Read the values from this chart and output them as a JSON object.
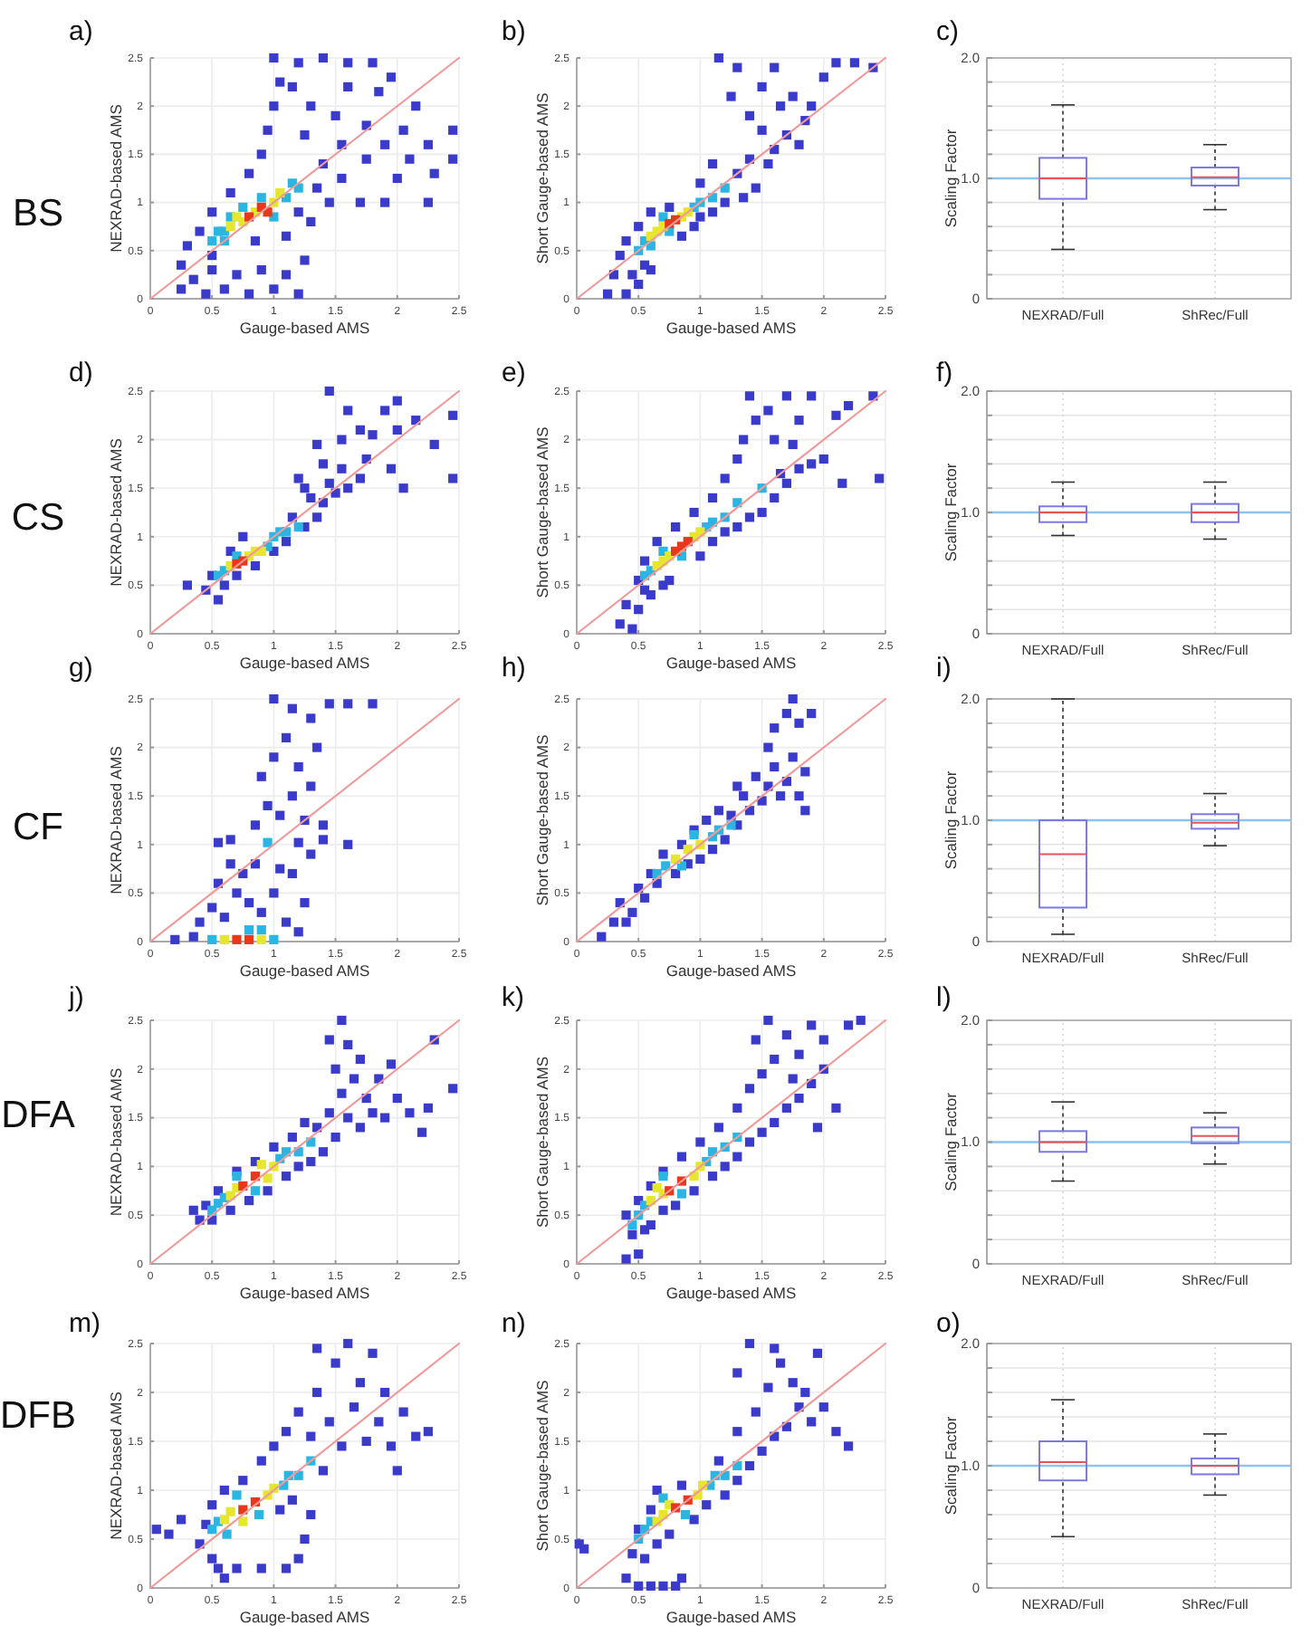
{
  "chart_data": [
    {
      "type": "scatter",
      "title": "a)",
      "annotations": [
        "BS"
      ],
      "xlabel": "Gauge-based AMS",
      "ylabel": "NEXRAD-based AMS",
      "xlim": [
        0,
        2.5
      ],
      "ylim": [
        0,
        2.5
      ],
      "xticks": [
        0,
        0.5,
        1,
        1.5,
        2,
        2.5
      ],
      "yticks": [
        0,
        0.5,
        1,
        1.5,
        2,
        2.5
      ],
      "grid": true,
      "marker": "square",
      "series": [
        {
          "color": "#3a3acb",
          "x": [
            0.25,
            0.25,
            0.3,
            0.35,
            0.45,
            0.5,
            0.6,
            0.7,
            0.8,
            0.9,
            1.0,
            1.1,
            1.2,
            1.25,
            1.1,
            0.4,
            0.5,
            0.85,
            1.3,
            1.2,
            1.45,
            1.7,
            1.9,
            2.25,
            0.5,
            0.65,
            0.8,
            0.9,
            0.95,
            1.0,
            1.05,
            1.0,
            1.2,
            1.4,
            1.6,
            1.8,
            1.15,
            1.3,
            1.25,
            1.4,
            1.35,
            1.55,
            1.55,
            1.5,
            1.6,
            1.75,
            1.85,
            1.95,
            1.75,
            1.9,
            2.05,
            2.15,
            2.1,
            2.25,
            2.45,
            2.45,
            2.0,
            2.3
          ],
          "values": [
            0.1,
            0.35,
            0.55,
            0.2,
            0.05,
            0.3,
            0.1,
            0.25,
            0.05,
            0.3,
            0.1,
            0.25,
            0.05,
            0.4,
            0.65,
            0.7,
            0.45,
            0.6,
            0.8,
            0.9,
            1.0,
            1.0,
            1.0,
            1.0,
            0.9,
            1.1,
            1.3,
            1.5,
            1.75,
            2.0,
            2.25,
            2.5,
            2.45,
            2.5,
            2.45,
            2.45,
            2.2,
            2.0,
            1.7,
            1.4,
            1.15,
            1.25,
            1.6,
            1.9,
            2.2,
            1.8,
            2.15,
            2.3,
            1.45,
            1.6,
            1.75,
            2.0,
            1.45,
            1.6,
            1.45,
            1.75,
            1.25,
            1.3
          ]
        },
        {
          "color": "#2bb5e3",
          "x": [
            0.5,
            0.55,
            0.6,
            0.65,
            0.75,
            1.0,
            1.1,
            1.15,
            1.2,
            0.9,
            0.6
          ],
          "values": [
            0.6,
            0.7,
            0.6,
            0.85,
            0.95,
            0.85,
            1.05,
            1.2,
            1.15,
            1.05,
            0.7
          ]
        },
        {
          "color": "#e6e62e",
          "x": [
            0.65,
            0.75,
            0.85,
            1.0,
            1.05,
            0.7
          ],
          "values": [
            0.75,
            0.8,
            0.9,
            1.0,
            1.1,
            0.85
          ]
        },
        {
          "color": "#e8381c",
          "x": [
            0.8,
            0.9,
            0.95
          ],
          "values": [
            0.85,
            0.95,
            0.9
          ]
        },
        {
          "type": "line",
          "marker": "none",
          "color": "#f19a9a",
          "x": [
            0,
            2.5
          ],
          "values": [
            0,
            2.5
          ]
        }
      ]
    },
    {
      "type": "scatter",
      "title": "b)",
      "xlabel": "Gauge-based AMS",
      "ylabel": "Short Gauge-based AMS",
      "xlim": [
        0,
        2.5
      ],
      "ylim": [
        0,
        2.5
      ],
      "xticks": [
        0,
        0.5,
        1,
        1.5,
        2,
        2.5
      ],
      "yticks": [
        0,
        0.5,
        1,
        1.5,
        2,
        2.5
      ],
      "grid": true,
      "marker": "square",
      "series": [
        {
          "color": "#3a3acb",
          "x": [
            0.25,
            0.3,
            0.35,
            0.4,
            0.45,
            0.5,
            0.55,
            0.6,
            0.4,
            0.5,
            0.6,
            0.75,
            0.85,
            0.95,
            1.0,
            1.1,
            1.2,
            1.35,
            1.45,
            1.3,
            1.4,
            1.55,
            1.6,
            1.7,
            1.8,
            1.85,
            1.5,
            1.4,
            1.25,
            1.15,
            1.3,
            1.5,
            1.6,
            1.75,
            1.9,
            2.0,
            2.1,
            2.25,
            2.4,
            1.65,
            1.1,
            1.0
          ],
          "values": [
            0.05,
            0.25,
            0.45,
            0.05,
            0.25,
            0.15,
            0.35,
            0.3,
            0.6,
            0.75,
            0.9,
            0.95,
            0.65,
            0.75,
            0.85,
            0.9,
            1.0,
            1.05,
            1.15,
            1.3,
            1.45,
            1.4,
            1.55,
            1.7,
            1.6,
            1.85,
            1.75,
            1.9,
            2.1,
            2.5,
            2.4,
            2.2,
            2.4,
            2.1,
            2.0,
            2.3,
            2.45,
            2.45,
            2.4,
            2.0,
            1.4,
            1.2
          ]
        },
        {
          "color": "#2bb5e3",
          "x": [
            0.5,
            0.55,
            0.6,
            0.75,
            0.95,
            1.0,
            1.1,
            0.7,
            1.2
          ],
          "values": [
            0.5,
            0.6,
            0.55,
            0.7,
            0.95,
            1.0,
            1.05,
            0.85,
            1.15
          ]
        },
        {
          "color": "#e6e62e",
          "x": [
            0.65,
            0.7,
            0.85,
            0.9,
            0.6
          ],
          "values": [
            0.7,
            0.75,
            0.85,
            0.9,
            0.65
          ]
        },
        {
          "color": "#e8381c",
          "x": [
            0.8,
            0.75
          ],
          "values": [
            0.82,
            0.78
          ]
        },
        {
          "type": "line",
          "marker": "none",
          "color": "#f19a9a",
          "x": [
            0,
            2.5
          ],
          "values": [
            0,
            2.5
          ]
        }
      ]
    },
    {
      "type": "box",
      "title": "c)",
      "ylabel": "Scaling Factor",
      "categories": [
        "NEXRAD/Full",
        "ShRec/Full"
      ],
      "ylim": [
        0,
        2
      ],
      "yticks": [
        0,
        {
          "value": 0.2,
          "label": null
        },
        {
          "value": 0.4,
          "label": null
        },
        {
          "value": 0.6,
          "label": null
        },
        {
          "value": 0.8,
          "label": null
        },
        {
          "value": 1,
          "label": "1.0"
        },
        {
          "value": 1.2,
          "label": null
        },
        {
          "value": 1.4,
          "label": null
        },
        {
          "value": 1.6,
          "label": null
        },
        {
          "value": 1.8,
          "label": null
        },
        {
          "value": 2,
          "label": "2.0"
        }
      ],
      "grid": true,
      "ref_lines": [
        {
          "axis": "y",
          "value": 1,
          "color": "#8fc3ec"
        }
      ],
      "series": [
        {
          "color": "#7d78e2",
          "boxes": [
            {
              "low": 0.41,
              "q1": 0.83,
              "median": 1.0,
              "q3": 1.17,
              "high": 1.61
            },
            {
              "low": 0.74,
              "q1": 0.94,
              "median": 1.01,
              "q3": 1.09,
              "high": 1.28
            }
          ]
        }
      ]
    },
    {
      "type": "scatter",
      "title": "d)",
      "annotations": [
        "CS"
      ],
      "xlabel": "Gauge-based AMS",
      "ylabel": "NEXRAD-based AMS",
      "xlim": [
        0,
        2.5
      ],
      "ylim": [
        0,
        2.5
      ],
      "xticks": [
        0,
        0.5,
        1,
        1.5,
        2,
        2.5
      ],
      "yticks": [
        0,
        0.5,
        1,
        1.5,
        2,
        2.5
      ],
      "grid": true,
      "marker": "square",
      "series": [
        {
          "color": "#3a3acb",
          "x": [
            0.3,
            0.45,
            0.5,
            0.55,
            0.6,
            0.7,
            0.65,
            0.75,
            0.85,
            1.0,
            1.1,
            1.15,
            1.25,
            1.35,
            1.3,
            1.4,
            1.45,
            1.5,
            1.55,
            1.6,
            1.7,
            1.75,
            1.4,
            1.35,
            1.55,
            1.6,
            1.8,
            1.9,
            2.0,
            1.95,
            2.05,
            2.0,
            2.15,
            2.3,
            2.45,
            2.45,
            1.45,
            1.7,
            1.25,
            1.2
          ],
          "values": [
            0.5,
            0.45,
            0.6,
            0.35,
            0.5,
            0.6,
            0.85,
            1.0,
            0.7,
            0.85,
            0.95,
            1.2,
            1.1,
            1.2,
            1.4,
            1.35,
            1.55,
            1.45,
            1.7,
            1.5,
            1.6,
            1.8,
            1.75,
            1.95,
            2.0,
            2.3,
            2.05,
            2.3,
            2.4,
            1.7,
            1.5,
            2.1,
            2.2,
            1.95,
            2.25,
            1.6,
            2.5,
            2.1,
            1.5,
            1.6
          ]
        },
        {
          "color": "#2bb5e3",
          "x": [
            0.55,
            0.6,
            0.95,
            1.0,
            1.05,
            0.7,
            1.1,
            1.2
          ],
          "values": [
            0.6,
            0.65,
            0.9,
            1.0,
            1.05,
            0.8,
            1.05,
            1.1
          ]
        },
        {
          "color": "#e6e62e",
          "x": [
            0.65,
            0.8,
            0.85,
            0.9
          ],
          "values": [
            0.7,
            0.8,
            0.85,
            0.85
          ]
        },
        {
          "color": "#e8381c",
          "x": [
            0.75,
            0.7
          ],
          "values": [
            0.75,
            0.72
          ]
        },
        {
          "type": "line",
          "marker": "none",
          "color": "#f19a9a",
          "x": [
            0,
            2.5
          ],
          "values": [
            0,
            2.5
          ]
        }
      ]
    },
    {
      "type": "scatter",
      "title": "e)",
      "xlabel": "Gauge-based AMS",
      "ylabel": "Short Gauge-based AMS",
      "xlim": [
        0,
        2.5
      ],
      "ylim": [
        0,
        2.5
      ],
      "xticks": [
        0,
        0.5,
        1,
        1.5,
        2,
        2.5
      ],
      "yticks": [
        0,
        0.5,
        1,
        1.5,
        2,
        2.5
      ],
      "grid": true,
      "marker": "square",
      "series": [
        {
          "color": "#3a3acb",
          "x": [
            0.35,
            0.45,
            0.5,
            0.4,
            0.55,
            0.6,
            0.7,
            0.75,
            0.5,
            0.55,
            0.65,
            0.8,
            0.95,
            1.0,
            1.1,
            1.2,
            1.3,
            1.4,
            1.5,
            1.6,
            1.7,
            1.8,
            1.9,
            2.0,
            1.1,
            1.2,
            1.3,
            1.35,
            1.45,
            1.4,
            1.55,
            1.6,
            1.7,
            1.8,
            1.9,
            1.75,
            2.1,
            2.2,
            2.4,
            2.45,
            2.15,
            1.65
          ],
          "values": [
            0.1,
            0.05,
            0.25,
            0.3,
            0.45,
            0.4,
            0.5,
            0.55,
            0.55,
            0.75,
            0.95,
            1.1,
            1.25,
            0.8,
            0.95,
            1.05,
            1.1,
            1.2,
            1.25,
            1.4,
            1.55,
            1.7,
            1.75,
            1.8,
            1.4,
            1.6,
            1.8,
            2.0,
            2.2,
            2.45,
            2.3,
            2.0,
            2.45,
            2.2,
            2.45,
            1.95,
            2.25,
            2.35,
            2.45,
            1.6,
            1.55,
            1.65
          ]
        },
        {
          "color": "#2bb5e3",
          "x": [
            0.55,
            0.6,
            1.05,
            1.1,
            1.2,
            0.7,
            0.85,
            1.3,
            1.5
          ],
          "values": [
            0.6,
            0.65,
            1.1,
            1.15,
            1.2,
            0.85,
            0.8,
            1.35,
            1.5
          ]
        },
        {
          "color": "#e6e62e",
          "x": [
            0.7,
            0.75,
            0.95,
            1.0,
            0.65
          ],
          "values": [
            0.75,
            0.8,
            1.0,
            1.05,
            0.7
          ]
        },
        {
          "color": "#e8381c",
          "x": [
            0.85,
            0.9,
            0.8
          ],
          "values": [
            0.9,
            0.95,
            0.85
          ]
        },
        {
          "type": "line",
          "marker": "none",
          "color": "#f19a9a",
          "x": [
            0,
            2.5
          ],
          "values": [
            0,
            2.5
          ]
        }
      ]
    },
    {
      "type": "box",
      "title": "f)",
      "ylabel": "Scaling Factor",
      "categories": [
        "NEXRAD/Full",
        "ShRec/Full"
      ],
      "ylim": [
        0,
        2
      ],
      "yticks": [
        0,
        {
          "value": 0.2,
          "label": null
        },
        {
          "value": 0.4,
          "label": null
        },
        {
          "value": 0.6,
          "label": null
        },
        {
          "value": 0.8,
          "label": null
        },
        {
          "value": 1,
          "label": "1.0"
        },
        {
          "value": 1.2,
          "label": null
        },
        {
          "value": 1.4,
          "label": null
        },
        {
          "value": 1.6,
          "label": null
        },
        {
          "value": 1.8,
          "label": null
        },
        {
          "value": 2,
          "label": "2.0"
        }
      ],
      "grid": true,
      "ref_lines": [
        {
          "axis": "y",
          "value": 1,
          "color": "#8fc3ec"
        }
      ],
      "series": [
        {
          "color": "#7d78e2",
          "boxes": [
            {
              "low": 0.81,
              "q1": 0.92,
              "median": 1.0,
              "q3": 1.05,
              "high": 1.25
            },
            {
              "low": 0.78,
              "q1": 0.92,
              "median": 1.0,
              "q3": 1.07,
              "high": 1.25
            }
          ]
        }
      ]
    },
    {
      "type": "scatter",
      "title": "g)",
      "annotations": [
        "CF"
      ],
      "xlabel": "Gauge-based AMS",
      "ylabel": "NEXRAD-based AMS",
      "xlim": [
        0,
        2.5
      ],
      "ylim": [
        0,
        2.5
      ],
      "xticks": [
        0,
        0.5,
        1,
        1.5,
        2,
        2.5
      ],
      "yticks": [
        0,
        0.5,
        1,
        1.5,
        2,
        2.5
      ],
      "grid": true,
      "marker": "square",
      "series": [
        {
          "color": "#3a3acb",
          "x": [
            0.2,
            0.35,
            0.4,
            0.5,
            0.6,
            0.55,
            0.7,
            0.8,
            0.9,
            1.0,
            1.1,
            1.2,
            1.25,
            0.65,
            0.75,
            0.85,
            1.05,
            1.15,
            1.3,
            0.55,
            0.65,
            1.2,
            1.4,
            1.6,
            0.85,
            0.95,
            1.05,
            1.15,
            0.9,
            1.0,
            1.1,
            1.2,
            1.3,
            1.35,
            1.0,
            1.15,
            1.3,
            1.45,
            1.6,
            1.8,
            1.4,
            1.25
          ],
          "values": [
            0.02,
            0.05,
            0.2,
            0.35,
            0.25,
            0.6,
            0.5,
            0.4,
            0.3,
            0.5,
            0.2,
            0.1,
            0.4,
            0.8,
            0.7,
            0.8,
            0.75,
            0.7,
            0.9,
            1.02,
            1.05,
            1.02,
            1.05,
            1.0,
            1.2,
            1.4,
            1.3,
            1.5,
            1.7,
            1.9,
            2.1,
            1.8,
            1.6,
            2.0,
            2.5,
            2.4,
            2.3,
            2.45,
            2.45,
            2.45,
            1.2,
            1.25
          ]
        },
        {
          "color": "#2bb5e3",
          "x": [
            0.5,
            1.0,
            0.9,
            0.8,
            0.95
          ],
          "values": [
            0.02,
            0.02,
            0.12,
            0.12,
            1.02
          ]
        },
        {
          "color": "#e6e62e",
          "x": [
            0.6,
            0.9
          ],
          "values": [
            0.02,
            0.02
          ]
        },
        {
          "color": "#e8381c",
          "x": [
            0.7,
            0.8
          ],
          "values": [
            0.02,
            0.02
          ]
        },
        {
          "type": "line",
          "marker": "none",
          "color": "#f19a9a",
          "x": [
            0,
            2.5
          ],
          "values": [
            0,
            2.5
          ]
        }
      ]
    },
    {
      "type": "scatter",
      "title": "h)",
      "xlabel": "Gauge-based AMS",
      "ylabel": "Short Gauge-based AMS",
      "xlim": [
        0,
        2.5
      ],
      "ylim": [
        0,
        2.5
      ],
      "xticks": [
        0,
        0.5,
        1,
        1.5,
        2,
        2.5
      ],
      "yticks": [
        0,
        0.5,
        1,
        1.5,
        2,
        2.5
      ],
      "grid": true,
      "marker": "square",
      "series": [
        {
          "color": "#3a3acb",
          "x": [
            0.2,
            0.3,
            0.35,
            0.45,
            0.5,
            0.55,
            0.6,
            0.65,
            0.7,
            0.8,
            0.85,
            0.9,
            1.0,
            0.95,
            1.05,
            1.1,
            1.2,
            1.15,
            1.25,
            1.3,
            1.35,
            1.4,
            1.45,
            1.5,
            1.55,
            1.6,
            1.65,
            1.7,
            1.75,
            1.8,
            1.85,
            1.55,
            1.6,
            1.7,
            1.75,
            1.8,
            1.9,
            1.85,
            0.4,
            1.3
          ],
          "values": [
            0.05,
            0.2,
            0.4,
            0.3,
            0.55,
            0.45,
            0.7,
            0.6,
            0.9,
            0.7,
            1.0,
            0.8,
            0.85,
            1.15,
            1.25,
            0.95,
            1.05,
            1.35,
            1.3,
            1.2,
            1.5,
            1.35,
            1.7,
            1.45,
            1.6,
            1.8,
            1.5,
            1.65,
            1.9,
            1.5,
            1.35,
            2.0,
            2.2,
            2.35,
            2.5,
            2.25,
            2.35,
            1.75,
            0.2,
            1.6
          ]
        },
        {
          "color": "#2bb5e3",
          "x": [
            0.65,
            0.72,
            1.1,
            1.15,
            1.25,
            0.85,
            0.95
          ],
          "values": [
            0.7,
            0.78,
            1.08,
            1.15,
            1.2,
            0.78,
            1.1
          ]
        },
        {
          "color": "#e6e62e",
          "x": [
            0.9,
            1.0,
            0.8
          ],
          "values": [
            0.95,
            1.0,
            0.85
          ]
        },
        {
          "type": "line",
          "marker": "none",
          "color": "#f19a9a",
          "x": [
            0,
            2.5
          ],
          "values": [
            0,
            2.5
          ]
        }
      ]
    },
    {
      "type": "box",
      "title": "i)",
      "ylabel": "Scaling Factor",
      "categories": [
        "NEXRAD/Full",
        "ShRec/Full"
      ],
      "ylim": [
        0,
        2
      ],
      "yticks": [
        0,
        {
          "value": 0.2,
          "label": null
        },
        {
          "value": 0.4,
          "label": null
        },
        {
          "value": 0.6,
          "label": null
        },
        {
          "value": 0.8,
          "label": null
        },
        {
          "value": 1,
          "label": "1.0"
        },
        {
          "value": 1.2,
          "label": null
        },
        {
          "value": 1.4,
          "label": null
        },
        {
          "value": 1.6,
          "label": null
        },
        {
          "value": 1.8,
          "label": null
        },
        {
          "value": 2,
          "label": "2.0"
        }
      ],
      "grid": true,
      "ref_lines": [
        {
          "axis": "y",
          "value": 1,
          "color": "#8fc3ec"
        }
      ],
      "series": [
        {
          "color": "#7d78e2",
          "boxes": [
            {
              "low": 0.06,
              "q1": 0.28,
              "median": 0.72,
              "q3": 1.0,
              "high": 2.0
            },
            {
              "low": 0.79,
              "q1": 0.93,
              "median": 0.98,
              "q3": 1.05,
              "high": 1.22
            }
          ]
        }
      ]
    },
    {
      "type": "scatter",
      "title": "j)",
      "annotations": [
        "DFA"
      ],
      "xlabel": "Gauge-based AMS",
      "ylabel": "NEXRAD-based AMS",
      "xlim": [
        0,
        2.5
      ],
      "ylim": [
        0,
        2.5
      ],
      "xticks": [
        0,
        0.5,
        1,
        1.5,
        2,
        2.5
      ],
      "yticks": [
        0,
        0.5,
        1,
        1.5,
        2,
        2.5
      ],
      "grid": true,
      "marker": "square",
      "series": [
        {
          "color": "#3a3acb",
          "x": [
            0.35,
            0.4,
            0.45,
            0.5,
            0.55,
            0.65,
            0.7,
            0.8,
            0.85,
            0.95,
            1.0,
            1.1,
            1.15,
            1.2,
            1.3,
            1.25,
            1.35,
            1.4,
            1.45,
            1.5,
            1.55,
            1.6,
            1.65,
            1.7,
            1.75,
            1.8,
            1.5,
            1.45,
            1.6,
            1.55,
            1.7,
            1.85,
            1.9,
            2.0,
            2.1,
            2.2,
            2.25,
            1.95,
            2.3,
            2.45
          ],
          "values": [
            0.55,
            0.45,
            0.6,
            0.45,
            0.75,
            0.55,
            0.95,
            0.65,
            1.05,
            0.75,
            1.2,
            0.9,
            1.3,
            1.0,
            1.05,
            1.45,
            1.4,
            1.15,
            1.55,
            1.3,
            1.75,
            1.5,
            1.9,
            1.4,
            1.7,
            1.55,
            2.0,
            2.3,
            2.25,
            2.5,
            2.1,
            1.9,
            1.5,
            1.7,
            1.55,
            1.35,
            1.6,
            2.05,
            2.3,
            1.8
          ]
        },
        {
          "color": "#2bb5e3",
          "x": [
            0.5,
            0.55,
            0.6,
            1.05,
            1.1,
            1.2,
            0.7,
            0.85,
            1.3
          ],
          "values": [
            0.55,
            0.62,
            0.68,
            1.08,
            1.15,
            1.15,
            0.9,
            0.75,
            1.25
          ]
        },
        {
          "color": "#e6e62e",
          "x": [
            0.65,
            0.7,
            0.95,
            1.0,
            0.9
          ],
          "values": [
            0.7,
            0.78,
            0.88,
            1.0,
            1.02
          ]
        },
        {
          "color": "#e8381c",
          "x": [
            0.75,
            0.85
          ],
          "values": [
            0.8,
            0.9
          ]
        },
        {
          "type": "line",
          "marker": "none",
          "color": "#f19a9a",
          "x": [
            0,
            2.5
          ],
          "values": [
            0,
            2.5
          ]
        }
      ]
    },
    {
      "type": "scatter",
      "title": "k)",
      "xlabel": "Gauge-based AMS",
      "ylabel": "Short Gauge-based AMS",
      "xlim": [
        0,
        2.5
      ],
      "ylim": [
        0,
        2.5
      ],
      "xticks": [
        0,
        0.5,
        1,
        1.5,
        2,
        2.5
      ],
      "yticks": [
        0,
        0.5,
        1,
        1.5,
        2,
        2.5
      ],
      "grid": true,
      "marker": "square",
      "series": [
        {
          "color": "#3a3acb",
          "x": [
            0.4,
            0.45,
            0.4,
            0.5,
            0.55,
            0.5,
            0.6,
            0.6,
            0.7,
            0.7,
            0.8,
            0.85,
            0.95,
            1.0,
            1.1,
            1.15,
            1.2,
            1.3,
            1.3,
            1.4,
            1.4,
            1.5,
            1.5,
            1.6,
            1.6,
            1.7,
            1.75,
            1.8,
            1.9,
            2.0,
            1.45,
            1.55,
            1.7,
            1.8,
            1.9,
            2.0,
            2.1,
            2.2,
            2.3,
            1.95
          ],
          "values": [
            0.05,
            0.3,
            0.5,
            0.1,
            0.35,
            0.65,
            0.4,
            0.8,
            0.55,
            0.95,
            0.6,
            1.1,
            0.75,
            1.25,
            0.9,
            1.4,
            1.0,
            1.1,
            1.6,
            1.25,
            1.8,
            1.35,
            1.95,
            1.45,
            2.1,
            1.6,
            1.9,
            1.7,
            1.85,
            2.0,
            2.3,
            2.5,
            2.35,
            2.15,
            2.45,
            2.3,
            1.6,
            2.45,
            2.5,
            1.4
          ]
        },
        {
          "color": "#2bb5e3",
          "x": [
            0.5,
            0.55,
            1.05,
            1.1,
            1.2,
            0.7,
            0.85,
            1.3,
            0.45
          ],
          "values": [
            0.5,
            0.6,
            1.05,
            1.15,
            1.2,
            0.9,
            0.72,
            1.3,
            0.4
          ]
        },
        {
          "color": "#e6e62e",
          "x": [
            0.6,
            0.7,
            0.95,
            1.0,
            0.65
          ],
          "values": [
            0.65,
            0.72,
            0.9,
            1.0,
            0.78
          ]
        },
        {
          "color": "#e8381c",
          "x": [
            0.75,
            0.85
          ],
          "values": [
            0.75,
            0.85
          ]
        },
        {
          "type": "line",
          "marker": "none",
          "color": "#f19a9a",
          "x": [
            0,
            2.5
          ],
          "values": [
            0,
            2.5
          ]
        }
      ]
    },
    {
      "type": "box",
      "title": "l)",
      "ylabel": "Scaling Factor",
      "categories": [
        "NEXRAD/Full",
        "ShRec/Full"
      ],
      "ylim": [
        0,
        2
      ],
      "yticks": [
        0,
        {
          "value": 0.2,
          "label": null
        },
        {
          "value": 0.4,
          "label": null
        },
        {
          "value": 0.6,
          "label": null
        },
        {
          "value": 0.8,
          "label": null
        },
        {
          "value": 1,
          "label": "1.0"
        },
        {
          "value": 1.2,
          "label": null
        },
        {
          "value": 1.4,
          "label": null
        },
        {
          "value": 1.6,
          "label": null
        },
        {
          "value": 1.8,
          "label": null
        },
        {
          "value": 2,
          "label": "2.0"
        }
      ],
      "grid": true,
      "ref_lines": [
        {
          "axis": "y",
          "value": 1,
          "color": "#8fc3ec"
        }
      ],
      "series": [
        {
          "color": "#7d78e2",
          "boxes": [
            {
              "low": 0.68,
              "q1": 0.92,
              "median": 1.0,
              "q3": 1.09,
              "high": 1.33
            },
            {
              "low": 0.82,
              "q1": 0.99,
              "median": 1.05,
              "q3": 1.12,
              "high": 1.24
            }
          ]
        }
      ]
    },
    {
      "type": "scatter",
      "title": "m)",
      "annotations": [
        "DFB"
      ],
      "xlabel": "Gauge-based AMS",
      "ylabel": "NEXRAD-based AMS",
      "xlim": [
        0,
        2.5
      ],
      "ylim": [
        0,
        2.5
      ],
      "xticks": [
        0,
        0.5,
        1,
        1.5,
        2,
        2.5
      ],
      "yticks": [
        0,
        0.5,
        1,
        1.5,
        2,
        2.5
      ],
      "grid": true,
      "marker": "square",
      "series": [
        {
          "color": "#3a3acb",
          "x": [
            0.05,
            0.15,
            0.25,
            0.4,
            0.45,
            0.5,
            0.55,
            0.6,
            0.7,
            0.9,
            1.1,
            1.2,
            1.25,
            1.3,
            0.5,
            0.6,
            0.75,
            0.9,
            1.0,
            1.05,
            1.15,
            1.1,
            1.2,
            1.3,
            1.35,
            1.4,
            1.45,
            1.5,
            1.55,
            1.6,
            1.65,
            1.7,
            1.75,
            1.85,
            1.9,
            1.95,
            2.05,
            2.15,
            2.25,
            2.0,
            1.35,
            1.8
          ],
          "values": [
            0.6,
            0.55,
            0.7,
            0.45,
            0.65,
            0.3,
            0.2,
            0.1,
            0.2,
            0.2,
            0.2,
            0.3,
            0.5,
            0.75,
            0.85,
            1.0,
            1.1,
            1.3,
            1.45,
            0.8,
            0.9,
            1.6,
            1.8,
            1.55,
            2.0,
            1.2,
            1.7,
            2.3,
            1.45,
            2.5,
            1.85,
            2.1,
            1.5,
            1.7,
            2.0,
            1.45,
            1.8,
            1.55,
            1.6,
            1.2,
            2.45,
            2.4
          ]
        },
        {
          "color": "#2bb5e3",
          "x": [
            0.5,
            0.55,
            0.62,
            1.08,
            1.12,
            1.2,
            0.7,
            0.88,
            1.3
          ],
          "values": [
            0.6,
            0.68,
            0.55,
            1.05,
            1.15,
            1.15,
            0.95,
            0.75,
            1.3
          ]
        },
        {
          "color": "#e6e62e",
          "x": [
            0.6,
            0.65,
            0.95,
            1.0,
            0.75
          ],
          "values": [
            0.7,
            0.78,
            0.95,
            1.02,
            0.68
          ]
        },
        {
          "color": "#e8381c",
          "x": [
            0.75,
            0.85
          ],
          "values": [
            0.8,
            0.88
          ]
        },
        {
          "type": "line",
          "marker": "none",
          "color": "#f19a9a",
          "x": [
            0,
            2.5
          ],
          "values": [
            0,
            2.5
          ]
        }
      ]
    },
    {
      "type": "scatter",
      "title": "n)",
      "xlabel": "Gauge-based AMS",
      "ylabel": "Short Gauge-based AMS",
      "xlim": [
        0,
        2.5
      ],
      "ylim": [
        0,
        2.5
      ],
      "xticks": [
        0,
        0.5,
        1,
        1.5,
        2,
        2.5
      ],
      "yticks": [
        0,
        0.5,
        1,
        1.5,
        2,
        2.5
      ],
      "grid": true,
      "marker": "square",
      "series": [
        {
          "color": "#3a3acb",
          "x": [
            0.02,
            0.06,
            0.4,
            0.45,
            0.5,
            0.6,
            0.7,
            0.8,
            0.85,
            0.55,
            0.65,
            0.75,
            0.5,
            0.6,
            0.65,
            0.85,
            0.95,
            1.05,
            1.15,
            1.2,
            1.3,
            1.3,
            1.4,
            1.45,
            1.5,
            1.55,
            1.6,
            1.65,
            1.7,
            1.8,
            1.85,
            1.9,
            2.0,
            2.1,
            2.2,
            1.4,
            1.6,
            1.75,
            1.95,
            1.3
          ],
          "values": [
            0.45,
            0.4,
            0.1,
            0.35,
            0.02,
            0.02,
            0.02,
            0.02,
            0.1,
            0.3,
            0.45,
            0.55,
            0.6,
            0.8,
            1.0,
            1.05,
            0.7,
            0.85,
            1.3,
            0.95,
            1.1,
            1.6,
            1.25,
            1.8,
            1.4,
            2.05,
            1.55,
            2.3,
            1.65,
            1.85,
            2.0,
            1.7,
            1.85,
            1.6,
            1.45,
            2.5,
            2.45,
            2.1,
            2.4,
            2.2
          ]
        },
        {
          "color": "#2bb5e3",
          "x": [
            0.55,
            0.6,
            1.08,
            1.12,
            1.2,
            0.7,
            0.88,
            0.5,
            1.3
          ],
          "values": [
            0.6,
            0.68,
            1.05,
            1.15,
            1.15,
            0.92,
            0.75,
            0.5,
            1.25
          ]
        },
        {
          "color": "#e6e62e",
          "x": [
            0.7,
            0.75,
            0.98,
            1.02,
            0.65
          ],
          "values": [
            0.75,
            0.85,
            0.95,
            1.05,
            0.68
          ]
        },
        {
          "color": "#e8381c",
          "x": [
            0.8,
            0.9
          ],
          "values": [
            0.82,
            0.9
          ]
        },
        {
          "type": "line",
          "marker": "none",
          "color": "#f19a9a",
          "x": [
            0,
            2.5
          ],
          "values": [
            0,
            2.5
          ]
        }
      ]
    },
    {
      "type": "box",
      "title": "o)",
      "ylabel": "Scaling Factor",
      "categories": [
        "NEXRAD/Full",
        "ShRec/Full"
      ],
      "ylim": [
        0,
        2
      ],
      "yticks": [
        0,
        {
          "value": 0.2,
          "label": null
        },
        {
          "value": 0.4,
          "label": null
        },
        {
          "value": 0.6,
          "label": null
        },
        {
          "value": 0.8,
          "label": null
        },
        {
          "value": 1,
          "label": "1.0"
        },
        {
          "value": 1.2,
          "label": null
        },
        {
          "value": 1.4,
          "label": null
        },
        {
          "value": 1.6,
          "label": null
        },
        {
          "value": 1.8,
          "label": null
        },
        {
          "value": 2,
          "label": "2.0"
        }
      ],
      "grid": true,
      "ref_lines": [
        {
          "axis": "y",
          "value": 1,
          "color": "#8fc3ec"
        }
      ],
      "series": [
        {
          "color": "#7d78e2",
          "boxes": [
            {
              "low": 0.42,
              "q1": 0.88,
              "median": 1.03,
              "q3": 1.2,
              "high": 1.54
            },
            {
              "low": 0.76,
              "q1": 0.93,
              "median": 1.0,
              "q3": 1.06,
              "high": 1.26
            }
          ]
        }
      ]
    }
  ]
}
